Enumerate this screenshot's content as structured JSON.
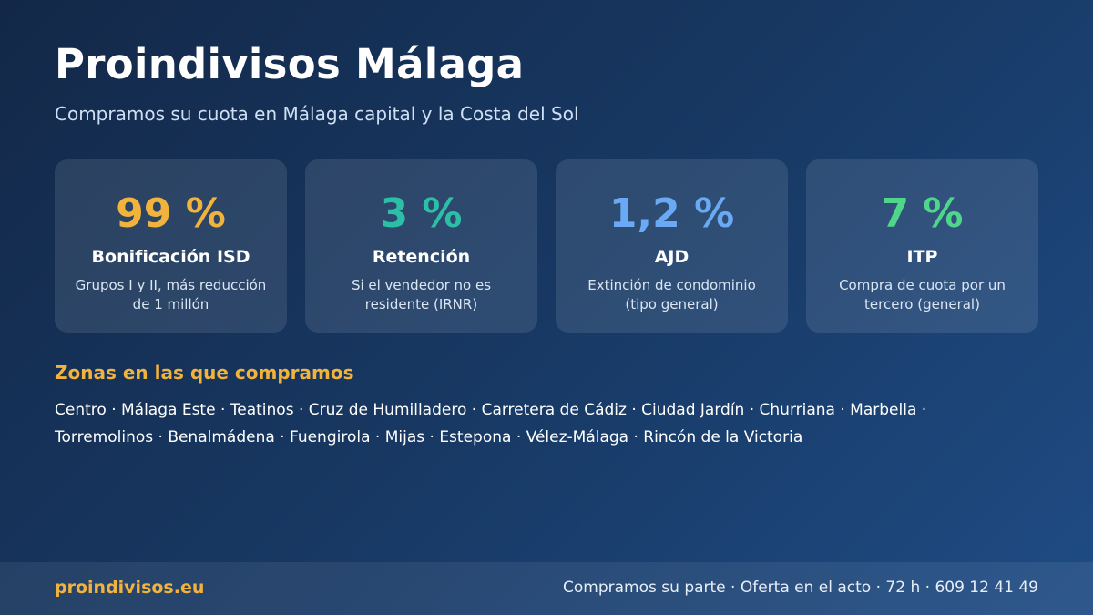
{
  "header": {
    "title": "Proindivisos Málaga",
    "subtitle": "Compramos su cuota en Málaga capital y la Costa del Sol"
  },
  "cards": [
    {
      "value": "99 %",
      "label": "Bonificación ISD",
      "description": "Grupos I y II, más reducción de 1 millón"
    },
    {
      "value": "3 %",
      "label": "Retención",
      "description": "Si el vendedor no es residente (IRNR)"
    },
    {
      "value": "1,2 %",
      "label": "AJD",
      "description": "Extinción de condominio (tipo general)"
    },
    {
      "value": "7 %",
      "label": "ITP",
      "description": "Compra de cuota por un tercero (general)"
    }
  ],
  "zones": {
    "title": "Zonas en las que compramos",
    "text": "Centro · Málaga Este · Teatinos · Cruz de Humilladero · Carretera de Cádiz · Ciudad Jardín · Churriana · Marbella · Torremolinos · Benalmádena · Fuengirola · Mijas · Estepona · Vélez-Málaga · Rincón de la Victoria"
  },
  "footer": {
    "site": "proindivisos.eu",
    "contact": "Compramos su parte · Oferta en el acto · 72 h · 609 12 41 49"
  }
}
